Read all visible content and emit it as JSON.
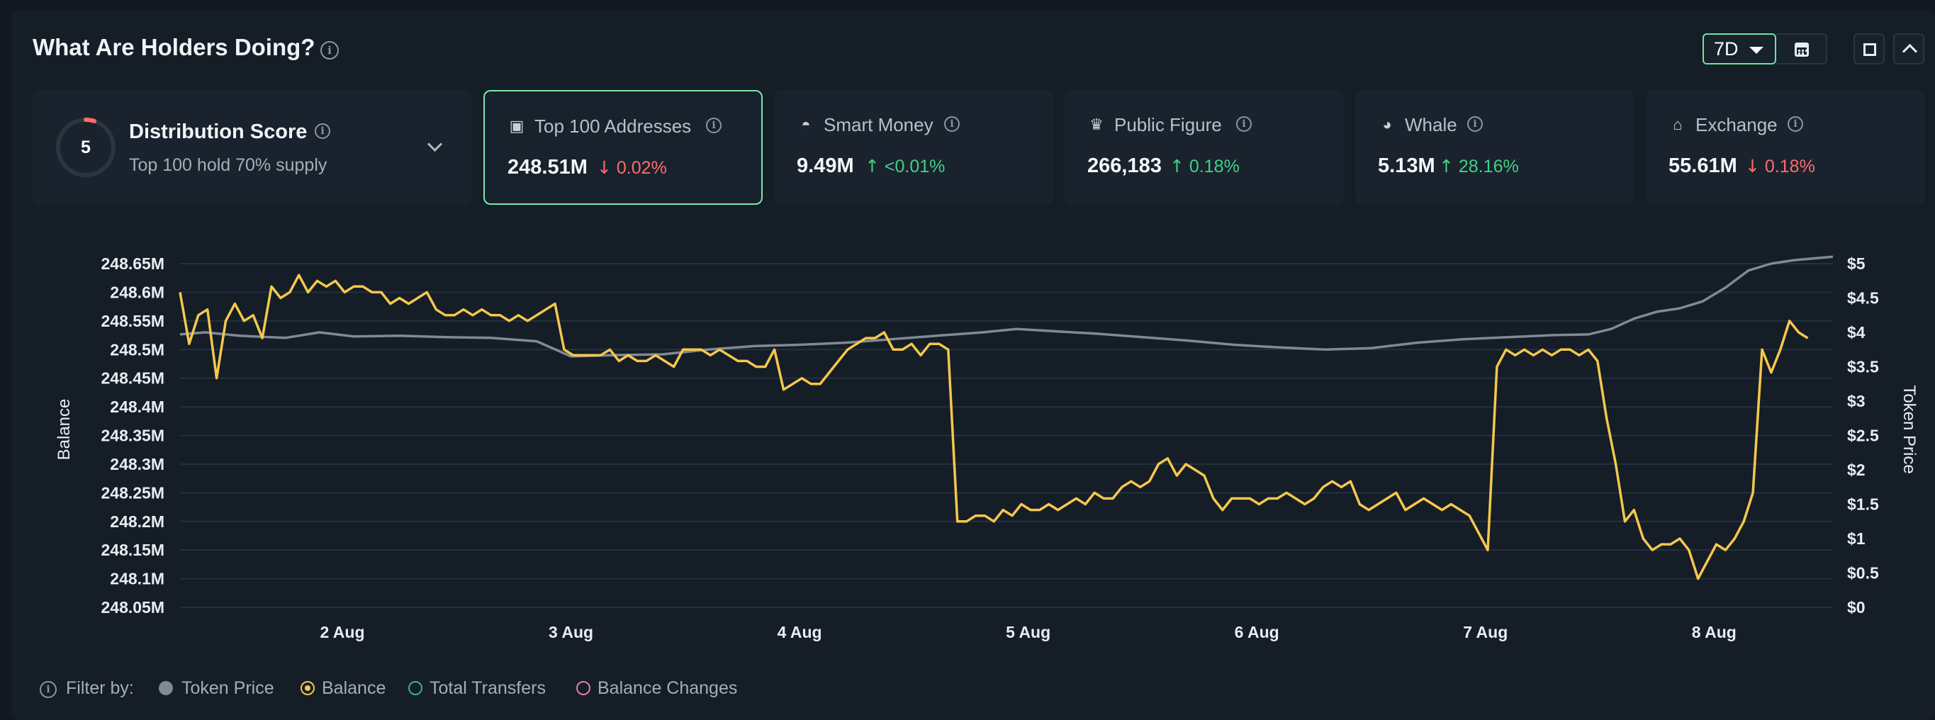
{
  "header": {
    "title": "What Are Holders Doing?",
    "period": "7D"
  },
  "distribution": {
    "title": "Distribution Score",
    "score": "5",
    "subtitle": "Top 100 hold 70% supply",
    "ring_fraction": 0.05,
    "ring_color": "#ff6b6b"
  },
  "cards": [
    {
      "label": "Top 100 Addresses",
      "value": "248.51M",
      "change": "0.02%",
      "direction": "down",
      "active": true,
      "icon": "wallet-icon"
    },
    {
      "label": "Smart Money",
      "value": "9.49M",
      "change": "<0.01%",
      "direction": "up",
      "active": false,
      "icon": "smart-money-icon"
    },
    {
      "label": "Public Figure",
      "value": "266,183",
      "change": "0.18%",
      "direction": "up",
      "active": false,
      "icon": "public-figure-icon"
    },
    {
      "label": "Whale",
      "value": "5.13M",
      "change": "28.16%",
      "direction": "up",
      "active": false,
      "icon": "whale-icon"
    },
    {
      "label": "Exchange",
      "value": "55.61M",
      "change": "0.18%",
      "direction": "down",
      "active": false,
      "icon": "bank-icon"
    }
  ],
  "filter": {
    "label": "Filter by:",
    "options": [
      {
        "label": "Token Price",
        "state": "filled",
        "color": "#7f8a95"
      },
      {
        "label": "Balance",
        "state": "selected",
        "color": "#f5c84c"
      },
      {
        "label": "Total Transfers",
        "state": "empty",
        "color": "#2fb59a"
      },
      {
        "label": "Balance Changes",
        "state": "empty",
        "color": "#e27fb0"
      }
    ]
  },
  "chart_data": {
    "type": "line",
    "ylabel_left": "Balance",
    "ylabel_right": "Token Price",
    "y_left_ticks": [
      "248.05M",
      "248.1M",
      "248.15M",
      "248.2M",
      "248.25M",
      "248.3M",
      "248.35M",
      "248.4M",
      "248.45M",
      "248.5M",
      "248.55M",
      "248.6M",
      "248.65M"
    ],
    "y_left_range": [
      248.05,
      248.65
    ],
    "y_right_ticks": [
      "$0",
      "$0.5",
      "$1",
      "$1.5",
      "$2",
      "$2.5",
      "$3",
      "$3.5",
      "$4",
      "$4.5",
      "$5"
    ],
    "y_right_range": [
      0,
      5
    ],
    "x_ticks": [
      "2 Aug",
      "3 Aug",
      "4 Aug",
      "5 Aug",
      "6 Aug",
      "7 Aug",
      "8 Aug"
    ],
    "x_range_days": [
      1.29,
      8.52
    ],
    "grid": true,
    "series": [
      {
        "name": "Balance",
        "axis": "left",
        "color": "#f5c84c",
        "points": [
          [
            1.29,
            248.6
          ],
          [
            1.33,
            248.51
          ],
          [
            1.37,
            248.56
          ],
          [
            1.41,
            248.57
          ],
          [
            1.45,
            248.45
          ],
          [
            1.49,
            248.55
          ],
          [
            1.53,
            248.58
          ],
          [
            1.57,
            248.55
          ],
          [
            1.61,
            248.56
          ],
          [
            1.65,
            248.52
          ],
          [
            1.69,
            248.61
          ],
          [
            1.73,
            248.59
          ],
          [
            1.77,
            248.6
          ],
          [
            1.81,
            248.63
          ],
          [
            1.85,
            248.6
          ],
          [
            1.89,
            248.62
          ],
          [
            1.93,
            248.61
          ],
          [
            1.97,
            248.62
          ],
          [
            2.01,
            248.6
          ],
          [
            2.05,
            248.61
          ],
          [
            2.09,
            248.61
          ],
          [
            2.13,
            248.6
          ],
          [
            2.17,
            248.6
          ],
          [
            2.21,
            248.58
          ],
          [
            2.25,
            248.59
          ],
          [
            2.29,
            248.58
          ],
          [
            2.33,
            248.59
          ],
          [
            2.37,
            248.6
          ],
          [
            2.41,
            248.57
          ],
          [
            2.45,
            248.56
          ],
          [
            2.49,
            248.56
          ],
          [
            2.53,
            248.57
          ],
          [
            2.57,
            248.56
          ],
          [
            2.61,
            248.57
          ],
          [
            2.65,
            248.56
          ],
          [
            2.69,
            248.56
          ],
          [
            2.73,
            248.55
          ],
          [
            2.77,
            248.56
          ],
          [
            2.81,
            248.55
          ],
          [
            2.85,
            248.56
          ],
          [
            2.89,
            248.57
          ],
          [
            2.93,
            248.58
          ],
          [
            2.97,
            248.5
          ],
          [
            3.01,
            248.49
          ],
          [
            3.05,
            248.49
          ],
          [
            3.09,
            248.49
          ],
          [
            3.13,
            248.49
          ],
          [
            3.17,
            248.5
          ],
          [
            3.21,
            248.48
          ],
          [
            3.25,
            248.49
          ],
          [
            3.29,
            248.48
          ],
          [
            3.33,
            248.48
          ],
          [
            3.37,
            248.49
          ],
          [
            3.41,
            248.48
          ],
          [
            3.45,
            248.47
          ],
          [
            3.49,
            248.5
          ],
          [
            3.53,
            248.5
          ],
          [
            3.57,
            248.5
          ],
          [
            3.61,
            248.49
          ],
          [
            3.65,
            248.5
          ],
          [
            3.69,
            248.49
          ],
          [
            3.73,
            248.48
          ],
          [
            3.77,
            248.48
          ],
          [
            3.81,
            248.47
          ],
          [
            3.85,
            248.47
          ],
          [
            3.89,
            248.5
          ],
          [
            3.93,
            248.43
          ],
          [
            3.97,
            248.44
          ],
          [
            4.01,
            248.45
          ],
          [
            4.05,
            248.44
          ],
          [
            4.09,
            248.44
          ],
          [
            4.13,
            248.46
          ],
          [
            4.17,
            248.48
          ],
          [
            4.21,
            248.5
          ],
          [
            4.25,
            248.51
          ],
          [
            4.29,
            248.52
          ],
          [
            4.33,
            248.52
          ],
          [
            4.37,
            248.53
          ],
          [
            4.41,
            248.5
          ],
          [
            4.45,
            248.5
          ],
          [
            4.49,
            248.51
          ],
          [
            4.53,
            248.49
          ],
          [
            4.57,
            248.51
          ],
          [
            4.61,
            248.51
          ],
          [
            4.65,
            248.5
          ],
          [
            4.69,
            248.2
          ],
          [
            4.73,
            248.2
          ],
          [
            4.77,
            248.21
          ],
          [
            4.81,
            248.21
          ],
          [
            4.85,
            248.2
          ],
          [
            4.89,
            248.22
          ],
          [
            4.93,
            248.21
          ],
          [
            4.97,
            248.23
          ],
          [
            5.01,
            248.22
          ],
          [
            5.05,
            248.22
          ],
          [
            5.09,
            248.23
          ],
          [
            5.13,
            248.22
          ],
          [
            5.17,
            248.23
          ],
          [
            5.21,
            248.24
          ],
          [
            5.25,
            248.23
          ],
          [
            5.29,
            248.25
          ],
          [
            5.33,
            248.24
          ],
          [
            5.37,
            248.24
          ],
          [
            5.41,
            248.26
          ],
          [
            5.45,
            248.27
          ],
          [
            5.49,
            248.26
          ],
          [
            5.53,
            248.27
          ],
          [
            5.57,
            248.3
          ],
          [
            5.61,
            248.31
          ],
          [
            5.65,
            248.28
          ],
          [
            5.69,
            248.3
          ],
          [
            5.73,
            248.29
          ],
          [
            5.77,
            248.28
          ],
          [
            5.81,
            248.24
          ],
          [
            5.85,
            248.22
          ],
          [
            5.89,
            248.24
          ],
          [
            5.93,
            248.24
          ],
          [
            5.97,
            248.24
          ],
          [
            6.01,
            248.23
          ],
          [
            6.05,
            248.24
          ],
          [
            6.09,
            248.24
          ],
          [
            6.13,
            248.25
          ],
          [
            6.17,
            248.24
          ],
          [
            6.21,
            248.23
          ],
          [
            6.25,
            248.24
          ],
          [
            6.29,
            248.26
          ],
          [
            6.33,
            248.27
          ],
          [
            6.37,
            248.26
          ],
          [
            6.41,
            248.27
          ],
          [
            6.45,
            248.23
          ],
          [
            6.49,
            248.22
          ],
          [
            6.53,
            248.23
          ],
          [
            6.57,
            248.24
          ],
          [
            6.61,
            248.25
          ],
          [
            6.65,
            248.22
          ],
          [
            6.69,
            248.23
          ],
          [
            6.73,
            248.24
          ],
          [
            6.77,
            248.23
          ],
          [
            6.81,
            248.22
          ],
          [
            6.85,
            248.23
          ],
          [
            6.89,
            248.22
          ],
          [
            6.93,
            248.21
          ],
          [
            6.97,
            248.18
          ],
          [
            7.01,
            248.15
          ],
          [
            7.05,
            248.47
          ],
          [
            7.09,
            248.5
          ],
          [
            7.13,
            248.49
          ],
          [
            7.17,
            248.5
          ],
          [
            7.21,
            248.49
          ],
          [
            7.25,
            248.5
          ],
          [
            7.29,
            248.49
          ],
          [
            7.33,
            248.5
          ],
          [
            7.37,
            248.5
          ],
          [
            7.41,
            248.49
          ],
          [
            7.45,
            248.5
          ],
          [
            7.49,
            248.48
          ],
          [
            7.53,
            248.38
          ],
          [
            7.57,
            248.3
          ],
          [
            7.61,
            248.2
          ],
          [
            7.65,
            248.22
          ],
          [
            7.69,
            248.17
          ],
          [
            7.73,
            248.15
          ],
          [
            7.77,
            248.16
          ],
          [
            7.81,
            248.16
          ],
          [
            7.85,
            248.17
          ],
          [
            7.89,
            248.15
          ],
          [
            7.93,
            248.1
          ],
          [
            7.97,
            248.13
          ],
          [
            8.01,
            248.16
          ],
          [
            8.05,
            248.15
          ],
          [
            8.09,
            248.17
          ],
          [
            8.13,
            248.2
          ],
          [
            8.17,
            248.25
          ],
          [
            8.21,
            248.5
          ],
          [
            8.25,
            248.46
          ],
          [
            8.29,
            248.5
          ],
          [
            8.33,
            248.55
          ],
          [
            8.37,
            248.53
          ],
          [
            8.41,
            248.52
          ]
        ]
      },
      {
        "name": "Token Price",
        "axis": "right",
        "color": "#7f8a95",
        "points": [
          [
            1.29,
            3.97
          ],
          [
            1.4,
            4.0
          ],
          [
            1.55,
            3.95
          ],
          [
            1.75,
            3.92
          ],
          [
            1.9,
            4.0
          ],
          [
            2.05,
            3.94
          ],
          [
            2.25,
            3.95
          ],
          [
            2.45,
            3.93
          ],
          [
            2.65,
            3.92
          ],
          [
            2.85,
            3.87
          ],
          [
            3.0,
            3.65
          ],
          [
            3.2,
            3.67
          ],
          [
            3.4,
            3.68
          ],
          [
            3.6,
            3.75
          ],
          [
            3.8,
            3.8
          ],
          [
            4.0,
            3.82
          ],
          [
            4.2,
            3.85
          ],
          [
            4.4,
            3.9
          ],
          [
            4.6,
            3.95
          ],
          [
            4.8,
            4.0
          ],
          [
            4.95,
            4.05
          ],
          [
            5.1,
            4.02
          ],
          [
            5.3,
            3.98
          ],
          [
            5.5,
            3.93
          ],
          [
            5.7,
            3.88
          ],
          [
            5.9,
            3.82
          ],
          [
            6.1,
            3.78
          ],
          [
            6.3,
            3.75
          ],
          [
            6.5,
            3.77
          ],
          [
            6.7,
            3.85
          ],
          [
            6.9,
            3.9
          ],
          [
            7.1,
            3.93
          ],
          [
            7.3,
            3.96
          ],
          [
            7.45,
            3.97
          ],
          [
            7.55,
            4.05
          ],
          [
            7.65,
            4.2
          ],
          [
            7.75,
            4.3
          ],
          [
            7.85,
            4.35
          ],
          [
            7.95,
            4.45
          ],
          [
            8.05,
            4.65
          ],
          [
            8.15,
            4.9
          ],
          [
            8.25,
            5.0
          ],
          [
            8.35,
            5.05
          ],
          [
            8.45,
            5.08
          ],
          [
            8.52,
            5.1
          ]
        ]
      }
    ]
  }
}
